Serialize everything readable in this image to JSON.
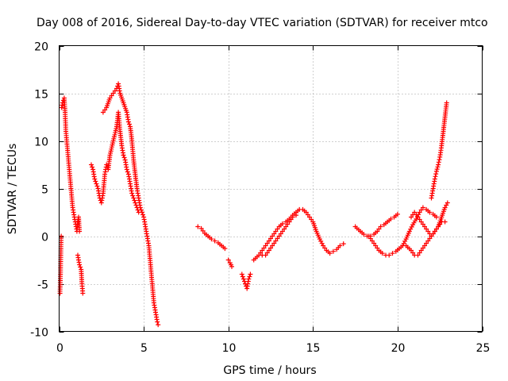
{
  "chart_data": {
    "type": "scatter",
    "title": "Day 008 of 2016, Sidereal Day-to-day VTEC variation (SDTVAR) for receiver mtco",
    "xlabel": "GPS time / hours",
    "ylabel": "SDTVAR / TECUs",
    "xlim": [
      0,
      25
    ],
    "ylim": [
      -10,
      20
    ],
    "xticks": [
      0,
      5,
      10,
      15,
      20,
      25
    ],
    "yticks": [
      -10,
      -5,
      0,
      5,
      10,
      15,
      20
    ],
    "xtick_labels": [
      "0",
      "5",
      "10",
      "15",
      "20",
      "25"
    ],
    "ytick_labels": [
      "-10",
      "-5",
      "0",
      "5",
      "10",
      "15",
      "20"
    ],
    "grid": true,
    "marker": "+",
    "color": "#ff0000",
    "series": [
      {
        "name": "seg1",
        "points": [
          [
            0.05,
            -6
          ],
          [
            0.08,
            -4
          ],
          [
            0.1,
            -2
          ],
          [
            0.12,
            0
          ]
        ]
      },
      {
        "name": "seg2",
        "points": [
          [
            0.15,
            13.5
          ],
          [
            0.2,
            14
          ],
          [
            0.3,
            14.5
          ],
          [
            0.35,
            13
          ],
          [
            0.4,
            11
          ],
          [
            0.5,
            9
          ],
          [
            0.6,
            7
          ],
          [
            0.7,
            5
          ],
          [
            0.8,
            3
          ],
          [
            0.9,
            2
          ],
          [
            1.0,
            1
          ],
          [
            1.05,
            0.5
          ],
          [
            1.1,
            1.5
          ],
          [
            1.15,
            2
          ],
          [
            1.2,
            0.5
          ]
        ]
      },
      {
        "name": "seg3",
        "points": [
          [
            1.1,
            -2
          ],
          [
            1.2,
            -3
          ],
          [
            1.3,
            -3.5
          ],
          [
            1.35,
            -5
          ],
          [
            1.4,
            -6
          ]
        ]
      },
      {
        "name": "seg4",
        "points": [
          [
            1.9,
            7.5
          ],
          [
            2.0,
            7
          ],
          [
            2.1,
            6
          ],
          [
            2.2,
            5.5
          ],
          [
            2.3,
            5
          ],
          [
            2.4,
            4
          ],
          [
            2.5,
            3.5
          ],
          [
            2.6,
            4.5
          ],
          [
            2.7,
            6.5
          ],
          [
            2.8,
            7.5
          ],
          [
            2.9,
            7
          ],
          [
            3.0,
            8.5
          ],
          [
            3.2,
            10
          ],
          [
            3.4,
            11.5
          ],
          [
            3.5,
            13
          ],
          [
            3.6,
            11
          ],
          [
            3.7,
            9.5
          ],
          [
            3.8,
            8.5
          ]
        ]
      },
      {
        "name": "seg5",
        "points": [
          [
            2.6,
            13
          ],
          [
            2.8,
            13.5
          ],
          [
            3.0,
            14.5
          ],
          [
            3.2,
            15
          ],
          [
            3.4,
            15.5
          ],
          [
            3.5,
            16
          ],
          [
            3.6,
            15
          ],
          [
            3.8,
            14
          ],
          [
            4.0,
            13
          ],
          [
            4.1,
            12
          ],
          [
            4.2,
            11.5
          ],
          [
            4.3,
            10
          ],
          [
            4.4,
            8
          ],
          [
            4.5,
            6.5
          ],
          [
            4.6,
            5
          ],
          [
            4.7,
            4
          ],
          [
            4.8,
            3
          ],
          [
            4.9,
            2.5
          ],
          [
            5.0,
            2
          ],
          [
            5.1,
            1
          ],
          [
            5.2,
            0
          ],
          [
            5.3,
            -1
          ],
          [
            5.4,
            -3
          ],
          [
            5.5,
            -5
          ],
          [
            5.6,
            -7
          ],
          [
            5.7,
            -8
          ],
          [
            5.8,
            -9
          ],
          [
            5.85,
            -9.3
          ]
        ]
      },
      {
        "name": "seg6",
        "points": [
          [
            3.8,
            8.5
          ],
          [
            3.9,
            8
          ],
          [
            4.0,
            7
          ],
          [
            4.1,
            6.5
          ],
          [
            4.2,
            5.5
          ],
          [
            4.3,
            4.5
          ],
          [
            4.4,
            4
          ],
          [
            4.5,
            3.5
          ],
          [
            4.6,
            3
          ],
          [
            4.7,
            2.5
          ]
        ]
      },
      {
        "name": "seg7",
        "points": [
          [
            8.2,
            1
          ],
          [
            8.4,
            0.8
          ],
          [
            8.6,
            0.3
          ],
          [
            8.8,
            0
          ],
          [
            9.0,
            -0.3
          ],
          [
            9.2,
            -0.5
          ],
          [
            9.4,
            -0.7
          ],
          [
            9.6,
            -1
          ],
          [
            9.8,
            -1.3
          ]
        ]
      },
      {
        "name": "seg8",
        "points": [
          [
            10.0,
            -2.5
          ],
          [
            10.1,
            -2.8
          ],
          [
            10.2,
            -3.2
          ]
        ]
      },
      {
        "name": "seg9",
        "points": [
          [
            10.8,
            -4
          ],
          [
            10.9,
            -4.5
          ],
          [
            11.0,
            -5
          ],
          [
            11.1,
            -5.5
          ],
          [
            11.2,
            -4.5
          ],
          [
            11.3,
            -4
          ]
        ]
      },
      {
        "name": "seg10",
        "points": [
          [
            11.5,
            -2.5
          ],
          [
            11.8,
            -2
          ],
          [
            12.0,
            -1.5
          ],
          [
            12.2,
            -1
          ],
          [
            12.4,
            -0.5
          ],
          [
            12.6,
            0
          ],
          [
            12.8,
            0.5
          ],
          [
            13.0,
            1
          ],
          [
            13.2,
            1.3
          ],
          [
            13.4,
            1.5
          ],
          [
            13.6,
            1.8
          ],
          [
            13.8,
            2.2
          ],
          [
            14.0,
            2.5
          ],
          [
            14.2,
            2.8
          ],
          [
            14.4,
            2.8
          ],
          [
            14.6,
            2.5
          ],
          [
            14.8,
            2
          ],
          [
            15.0,
            1.5
          ],
          [
            15.2,
            0.5
          ],
          [
            15.4,
            -0.3
          ],
          [
            15.6,
            -1
          ],
          [
            15.8,
            -1.5
          ],
          [
            16.0,
            -1.8
          ],
          [
            16.2,
            -1.6
          ],
          [
            16.4,
            -1.4
          ],
          [
            16.6,
            -1
          ],
          [
            16.8,
            -0.8
          ]
        ]
      },
      {
        "name": "seg11",
        "points": [
          [
            12.0,
            -2
          ],
          [
            12.2,
            -2
          ],
          [
            12.4,
            -1.5
          ],
          [
            12.6,
            -1
          ],
          [
            12.8,
            -0.5
          ],
          [
            13.0,
            0
          ],
          [
            13.2,
            0.5
          ],
          [
            13.4,
            1
          ],
          [
            13.6,
            1.5
          ],
          [
            13.8,
            2
          ],
          [
            14.0,
            2.2
          ]
        ]
      },
      {
        "name": "seg12",
        "points": [
          [
            17.5,
            1
          ],
          [
            17.8,
            0.5
          ],
          [
            18.0,
            0.2
          ],
          [
            18.2,
            0
          ],
          [
            18.4,
            0
          ],
          [
            18.6,
            0.2
          ],
          [
            18.8,
            0.5
          ],
          [
            19.0,
            1
          ],
          [
            19.2,
            1.2
          ],
          [
            19.4,
            1.5
          ],
          [
            19.6,
            1.8
          ],
          [
            19.8,
            2
          ],
          [
            20.0,
            2.3
          ]
        ]
      },
      {
        "name": "seg13",
        "points": [
          [
            18.3,
            0
          ],
          [
            18.5,
            -0.5
          ],
          [
            18.7,
            -1
          ],
          [
            18.9,
            -1.5
          ],
          [
            19.1,
            -1.8
          ],
          [
            19.3,
            -2
          ],
          [
            19.5,
            -2
          ],
          [
            19.7,
            -1.8
          ],
          [
            19.9,
            -1.6
          ],
          [
            20.1,
            -1.3
          ],
          [
            20.3,
            -1
          ],
          [
            20.5,
            -0.3
          ],
          [
            20.7,
            0.5
          ],
          [
            20.9,
            1.2
          ],
          [
            21.1,
            1.8
          ],
          [
            21.3,
            2.5
          ],
          [
            21.5,
            3
          ],
          [
            21.7,
            2.8
          ],
          [
            21.9,
            2.5
          ],
          [
            22.1,
            2.3
          ],
          [
            22.3,
            2
          ]
        ]
      },
      {
        "name": "seg14",
        "points": [
          [
            20.5,
            -1
          ],
          [
            20.8,
            -1.5
          ],
          [
            21.0,
            -2
          ],
          [
            21.2,
            -2
          ],
          [
            21.4,
            -1.5
          ],
          [
            21.6,
            -1
          ],
          [
            21.8,
            -0.5
          ],
          [
            22.0,
            0
          ],
          [
            22.2,
            0.5
          ],
          [
            22.4,
            1
          ],
          [
            22.6,
            1.5
          ],
          [
            22.8,
            1.5
          ]
        ]
      },
      {
        "name": "seg15",
        "points": [
          [
            20.8,
            2
          ],
          [
            21.0,
            2.5
          ],
          [
            21.2,
            2
          ],
          [
            21.4,
            1.5
          ],
          [
            21.6,
            1
          ],
          [
            21.8,
            0.5
          ],
          [
            22.0,
            0
          ],
          [
            22.2,
            0.5
          ],
          [
            22.4,
            1
          ],
          [
            22.6,
            2
          ],
          [
            22.8,
            3
          ],
          [
            22.95,
            3.5
          ]
        ]
      },
      {
        "name": "seg16",
        "points": [
          [
            22.0,
            4
          ],
          [
            22.1,
            5
          ],
          [
            22.2,
            6
          ],
          [
            22.3,
            6.8
          ],
          [
            22.4,
            7.5
          ],
          [
            22.5,
            8.3
          ],
          [
            22.6,
            9.5
          ],
          [
            22.7,
            11
          ],
          [
            22.8,
            12.5
          ],
          [
            22.9,
            14
          ]
        ]
      }
    ]
  }
}
